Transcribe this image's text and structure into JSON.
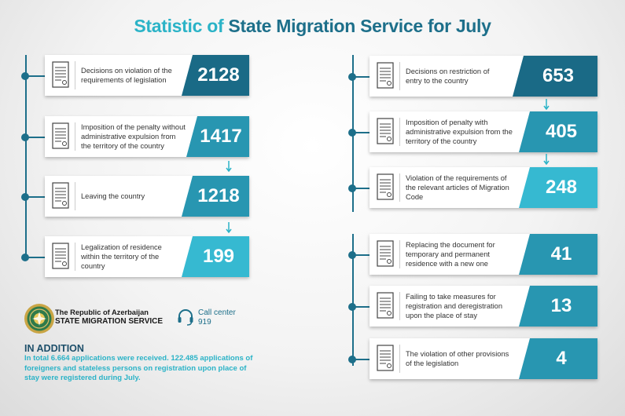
{
  "title": {
    "part1": "Statistic of",
    "part2": "State Migration Service for July"
  },
  "left_column": [
    {
      "label": "Decisions on violation of the requirements of legislation",
      "value": "2128",
      "tone": "dark"
    },
    {
      "label": "Imposition of the penalty without administrative expulsion from the territory of the country",
      "value": "1417",
      "tone": "mid"
    },
    {
      "label": "Leaving the country",
      "value": "1218",
      "tone": "mid"
    },
    {
      "label": "Legalization of residence within the territory of the country",
      "value": "199",
      "tone": "light"
    }
  ],
  "right_column": [
    {
      "label": "Decisions on restriction of entry to the country",
      "value": "653",
      "tone": "dark"
    },
    {
      "label": "Imposition of penalty with administrative expulsion from the territory of the country",
      "value": "405",
      "tone": "mid"
    },
    {
      "label": "Violation of the requirements of the relevant articles of Migration Code",
      "value": "248",
      "tone": "light"
    },
    {
      "label": "Replacing the document for temporary and permanent residence with a new one",
      "value": "41",
      "tone": "mid"
    },
    {
      "label": "Failing to take measures for registration and deregistration upon the place of stay",
      "value": "13",
      "tone": "mid"
    },
    {
      "label": "The violation of other provisions of the legislation",
      "value": "4",
      "tone": "mid"
    }
  ],
  "organization": {
    "line1": "The Republic of Azerbaijan",
    "line2": "STATE MIGRATION SERVICE"
  },
  "call_center": {
    "label": "Call center",
    "number": "919"
  },
  "in_addition": {
    "heading": "IN ADDITION",
    "text": "In total 6.664 applications were received. 122.485 applications of foreigners and stateless persons on registration upon place of stay were registered during July."
  },
  "colors": {
    "dark": "#1a6a86",
    "mid": "#2896b1",
    "light": "#36b9d1",
    "accent": "#2bb3c7"
  },
  "icons": {
    "card": "document-icon",
    "call_center": "headset-icon",
    "logo": "emblem-icon",
    "flow": "arrow-down-icon"
  }
}
